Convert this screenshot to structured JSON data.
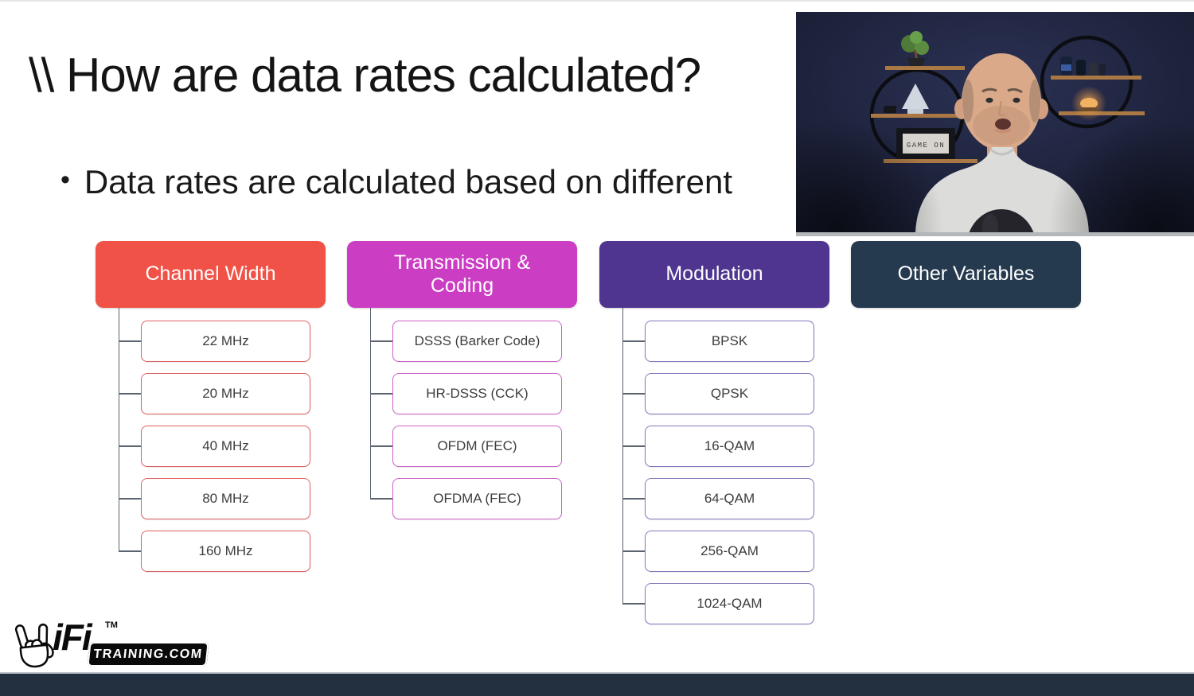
{
  "slide": {
    "title": "\\\\ How are data rates calculated?",
    "bullet": "Data rates are calculated based on different"
  },
  "tree": {
    "columns": [
      {
        "id": "channel-width",
        "label": "Channel Width",
        "color": "#f05247",
        "child_border": "#e06060",
        "children": [
          "22 MHz",
          "20 MHz",
          "40 MHz",
          "80 MHz",
          "160 MHz"
        ]
      },
      {
        "id": "transmission-coding",
        "label": "Transmission & Coding",
        "color": "#cb3ec3",
        "child_border": "#cb63c7",
        "children": [
          "DSSS (Barker Code)",
          "HR-DSSS (CCK)",
          "OFDM (FEC)",
          "OFDMA (FEC)"
        ]
      },
      {
        "id": "modulation",
        "label": "Modulation",
        "color": "#4f3590",
        "child_border": "#8478bd",
        "children": [
          "BPSK",
          "QPSK",
          "16-QAM",
          "64-QAM",
          "256-QAM",
          "1024-QAM"
        ]
      },
      {
        "id": "other-variables",
        "label": "Other Variables",
        "color": "#253a4f",
        "child_border": "#62718a",
        "children": []
      }
    ],
    "connector_color": "#5a6370"
  },
  "webcam": {
    "sign_text": "GAME ON"
  },
  "logo": {
    "brand": "iFi",
    "tm": "TM",
    "training": "TRAINING.COM"
  },
  "footer": {
    "bar_color": "#22303f"
  }
}
